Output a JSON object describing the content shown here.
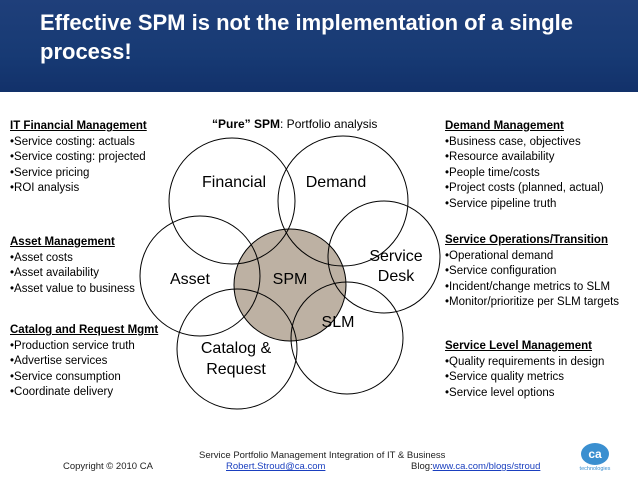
{
  "title": "Effective SPM is not the implementation of a single process!",
  "pure_spm": {
    "bold": "“Pure” SPM",
    "rest": ": Portfolio analysis"
  },
  "left_blocks": [
    {
      "header": "IT Financial Management",
      "items": [
        "•Service costing: actuals",
        "•Service costing: projected",
        "•Service pricing",
        "•ROI analysis"
      ]
    },
    {
      "header": "Asset Management",
      "items": [
        "•Asset costs",
        "•Asset availability",
        "•Asset value to business"
      ]
    },
    {
      "header": "Catalog and Request Mgmt",
      "items": [
        "•Production service truth",
        "•Advertise services",
        "•Service consumption",
        "•Coordinate delivery"
      ]
    }
  ],
  "right_blocks": [
    {
      "header": "Demand Management",
      "items": [
        "•Business case, objectives",
        "•Resource availability",
        "•People time/costs",
        "•Project costs (planned, actual)",
        "•Service pipeline truth"
      ]
    },
    {
      "header": "Service Operations/Transition",
      "items": [
        "•Operational demand",
        "•Service configuration",
        "•Incident/change metrics to SLM",
        "•Monitor/prioritize per SLM targets"
      ]
    },
    {
      "header": "Service Level Management",
      "items": [
        "•Quality requirements in design",
        "•Service quality metrics",
        "•Service level options"
      ]
    }
  ],
  "venn": {
    "financial": "Financial",
    "demand": "Demand",
    "service_desk_1": "Service",
    "service_desk_2": "Desk",
    "slm": "SLM",
    "catalog_1": "Catalog &",
    "catalog_2": "Request",
    "asset": "Asset",
    "spm": "SPM"
  },
  "footer": {
    "copyright": "Copyright © 2010 CA",
    "line1": "Service Portfolio Management Integration of IT & Business",
    "email": "Robert.Stroud@ca.com",
    "blog_label": "Blog:",
    "blog_url": "www.ca.com/blogs/stroud",
    "logo_text": "ca",
    "logo_sub": "technologies"
  },
  "colors": {
    "title_bar": "#1a3a78",
    "spm_fill": "#bdb1a3",
    "link": "#1a3fbf",
    "logo_blue": "#3a8fd0"
  }
}
